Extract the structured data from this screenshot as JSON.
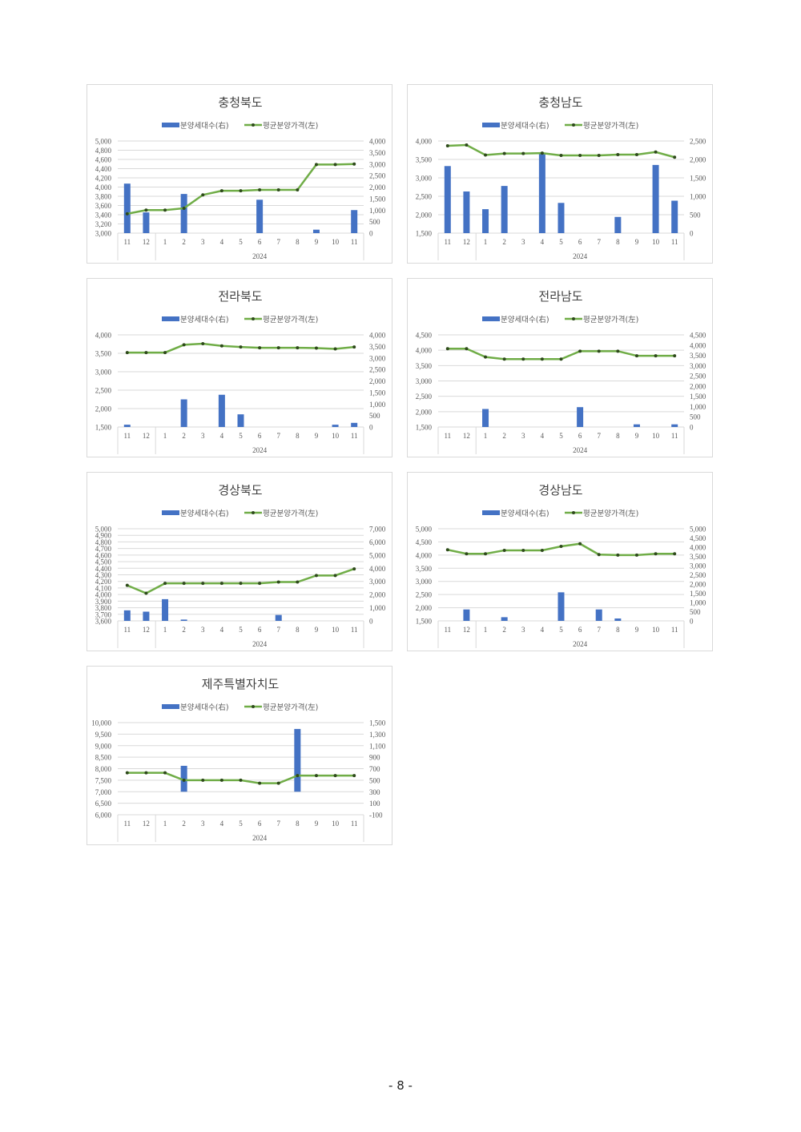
{
  "colors": {
    "bar": "#4472c4",
    "line": "#70ad47",
    "marker": "#2e4a1b",
    "grid": "#d9d9d9",
    "text": "#595959"
  },
  "legend": {
    "bar_label": "분양세대수(右)",
    "line_label": "평균분양가격(左)"
  },
  "page_number": "- 8 -",
  "chart_data": [
    {
      "type": "bar+line",
      "title": "충청북도",
      "categories": [
        "11",
        "12",
        "1",
        "2",
        "3",
        "4",
        "5",
        "6",
        "7",
        "8",
        "9",
        "10",
        "11"
      ],
      "year_label": "2024",
      "left_axis": {
        "min": 3000,
        "max": 5000,
        "ticks": [
          "5,000",
          "4,800",
          "4,600",
          "4,400",
          "4,200",
          "4,000",
          "3,800",
          "3,600",
          "3,400",
          "3,200",
          "3,000"
        ]
      },
      "right_axis": {
        "min": 0,
        "max": 4000,
        "ticks": [
          "4,000",
          "3,500",
          "3,000",
          "2,500",
          "2,000",
          "1,500",
          "1,000",
          "500",
          "0"
        ]
      },
      "series": [
        {
          "kind": "bar",
          "axis": "right",
          "values": [
            2150,
            900,
            0,
            1700,
            0,
            0,
            0,
            1450,
            0,
            0,
            150,
            0,
            1000
          ]
        },
        {
          "kind": "line",
          "axis": "left",
          "values": [
            3420,
            3500,
            3500,
            3540,
            3830,
            3920,
            3920,
            3940,
            3940,
            3940,
            4490,
            4490,
            4500
          ]
        }
      ]
    },
    {
      "type": "bar+line",
      "title": "충청남도",
      "categories": [
        "11",
        "12",
        "1",
        "2",
        "3",
        "4",
        "5",
        "6",
        "7",
        "8",
        "9",
        "10",
        "11"
      ],
      "year_label": "2024",
      "left_axis": {
        "min": 1500,
        "max": 4000,
        "ticks": [
          "4,000",
          "3,500",
          "3,000",
          "2,500",
          "2,000",
          "1,500"
        ]
      },
      "right_axis": {
        "min": 0,
        "max": 2500,
        "ticks": [
          "2,500",
          "2,000",
          "1,500",
          "1,000",
          "500",
          "0"
        ]
      },
      "series": [
        {
          "kind": "bar",
          "axis": "right",
          "values": [
            1820,
            1130,
            650,
            1280,
            0,
            2180,
            820,
            0,
            0,
            440,
            0,
            1850,
            880
          ]
        },
        {
          "kind": "line",
          "axis": "left",
          "values": [
            3870,
            3890,
            3620,
            3660,
            3660,
            3670,
            3610,
            3610,
            3610,
            3630,
            3630,
            3700,
            3560
          ]
        }
      ]
    },
    {
      "type": "bar+line",
      "title": "전라북도",
      "categories": [
        "11",
        "12",
        "1",
        "2",
        "3",
        "4",
        "5",
        "6",
        "7",
        "8",
        "9",
        "10",
        "11"
      ],
      "year_label": "2024",
      "left_axis": {
        "min": 1500,
        "max": 4000,
        "ticks": [
          "4,000",
          "3,500",
          "3,000",
          "2,500",
          "2,000",
          "1,500"
        ]
      },
      "right_axis": {
        "min": 0,
        "max": 4000,
        "ticks": [
          "4,000",
          "3,500",
          "3,000",
          "2,500",
          "2,000",
          "1,500",
          "1,000",
          "500",
          "0"
        ]
      },
      "series": [
        {
          "kind": "bar",
          "axis": "right",
          "values": [
            100,
            0,
            0,
            1200,
            0,
            1400,
            550,
            0,
            0,
            0,
            0,
            100,
            180
          ]
        },
        {
          "kind": "line",
          "axis": "left",
          "values": [
            3520,
            3520,
            3520,
            3730,
            3760,
            3700,
            3670,
            3650,
            3650,
            3650,
            3640,
            3620,
            3670
          ]
        }
      ]
    },
    {
      "type": "bar+line",
      "title": "전라남도",
      "categories": [
        "11",
        "12",
        "1",
        "2",
        "3",
        "4",
        "5",
        "6",
        "7",
        "8",
        "9",
        "10",
        "11"
      ],
      "year_label": "2024",
      "left_axis": {
        "min": 1500,
        "max": 4500,
        "ticks": [
          "4,500",
          "4,000",
          "3,500",
          "3,000",
          "2,500",
          "2,000",
          "1,500"
        ]
      },
      "right_axis": {
        "min": 0,
        "max": 4500,
        "ticks": [
          "4,500",
          "4,000",
          "3,500",
          "3,000",
          "2,500",
          "2,000",
          "1,500",
          "1,000",
          "500",
          "0"
        ]
      },
      "series": [
        {
          "kind": "bar",
          "axis": "right",
          "values": [
            0,
            0,
            880,
            0,
            0,
            0,
            0,
            970,
            0,
            0,
            130,
            0,
            130
          ]
        },
        {
          "kind": "line",
          "axis": "left",
          "values": [
            4050,
            4050,
            3780,
            3710,
            3710,
            3710,
            3710,
            3970,
            3970,
            3970,
            3820,
            3820,
            3820
          ]
        }
      ]
    },
    {
      "type": "bar+line",
      "title": "경상북도",
      "categories": [
        "11",
        "12",
        "1",
        "2",
        "3",
        "4",
        "5",
        "6",
        "7",
        "8",
        "9",
        "10",
        "11"
      ],
      "year_label": "2024",
      "left_axis": {
        "min": 3600,
        "max": 5000,
        "ticks": [
          "5,000",
          "4,900",
          "4,800",
          "4,700",
          "4,600",
          "4,500",
          "4,400",
          "4,300",
          "4,200",
          "4,100",
          "4,000",
          "3,900",
          "3,800",
          "3,700",
          "3,600"
        ]
      },
      "right_axis": {
        "min": 0,
        "max": 7000,
        "ticks": [
          "7,000",
          "6,000",
          "5,000",
          "4,000",
          "3,000",
          "2,000",
          "1,000",
          "0"
        ]
      },
      "series": [
        {
          "kind": "bar",
          "axis": "right",
          "values": [
            800,
            700,
            1650,
            100,
            0,
            0,
            0,
            0,
            450,
            0,
            0,
            0,
            0
          ]
        },
        {
          "kind": "line",
          "axis": "left",
          "values": [
            4140,
            4020,
            4170,
            4170,
            4170,
            4170,
            4170,
            4170,
            4190,
            4190,
            4290,
            4290,
            4390
          ]
        }
      ]
    },
    {
      "type": "bar+line",
      "title": "경상남도",
      "categories": [
        "11",
        "12",
        "1",
        "2",
        "3",
        "4",
        "5",
        "6",
        "7",
        "8",
        "9",
        "10",
        "11"
      ],
      "year_label": "2024",
      "left_axis": {
        "min": 1500,
        "max": 5000,
        "ticks": [
          "5,000",
          "4,500",
          "4,000",
          "3,500",
          "3,000",
          "2,500",
          "2,000",
          "1,500"
        ]
      },
      "right_axis": {
        "min": 0,
        "max": 5000,
        "ticks": [
          "5,000",
          "4,500",
          "4,000",
          "3,500",
          "3,000",
          "2,500",
          "2,000",
          "1,500",
          "1,000",
          "500",
          "0"
        ]
      },
      "series": [
        {
          "kind": "bar",
          "axis": "right",
          "values": [
            0,
            620,
            0,
            200,
            0,
            0,
            1550,
            0,
            620,
            130,
            0,
            0,
            0
          ]
        },
        {
          "kind": "line",
          "axis": "left",
          "values": [
            4200,
            4050,
            4050,
            4180,
            4180,
            4180,
            4330,
            4430,
            4020,
            4000,
            4000,
            4050,
            4050
          ]
        }
      ]
    },
    {
      "type": "bar+line",
      "title": "제주특별자치도",
      "categories": [
        "11",
        "12",
        "1",
        "2",
        "3",
        "4",
        "5",
        "6",
        "7",
        "8",
        "9",
        "10",
        "11"
      ],
      "year_label": "2024",
      "left_axis": {
        "min": 6000,
        "max": 10000,
        "ticks": [
          "10,000",
          "9,500",
          "9,000",
          "8,500",
          "8,000",
          "7,500",
          "7,000",
          "6,500",
          "6,000"
        ]
      },
      "right_axis": {
        "min": -100,
        "max": 1500,
        "ticks": [
          "1,500",
          "1,300",
          "1,100",
          "900",
          "700",
          "500",
          "300",
          "100",
          "-100"
        ]
      },
      "series": [
        {
          "kind": "bar",
          "axis": "right",
          "values": [
            0,
            0,
            0,
            750,
            0,
            0,
            0,
            0,
            0,
            1390,
            0,
            0,
            0
          ],
          "bar_base": 300
        },
        {
          "kind": "line",
          "axis": "left",
          "values": [
            7820,
            7820,
            7820,
            7500,
            7500,
            7500,
            7500,
            7370,
            7370,
            7700,
            7700,
            7700,
            7700
          ]
        }
      ]
    }
  ]
}
